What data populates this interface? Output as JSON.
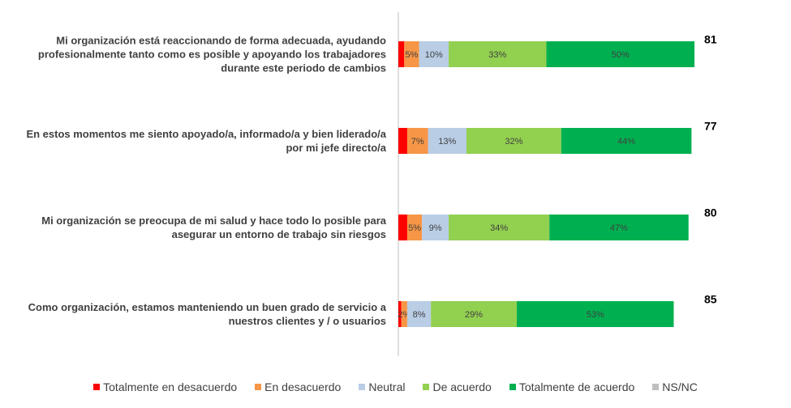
{
  "chart_data": {
    "type": "stacked-bar-horizontal",
    "categories": [
      "Mi organización está reaccionando de forma adecuada, ayudando profesionalmente tanto como es posible y apoyando los trabajadores durante este periodo de cambios",
      "En estos momentos me siento apoyado/a, informado/a y bien liderado/a por mi jefe directo/a",
      "Mi organización se preocupa de mi salud y hace todo lo posible para asegurar un entorno de trabajo sin riesgos",
      "Como organización, estamos manteniendo un buen grado de servicio a nuestros clientes y / o usuarios"
    ],
    "xlim": [
      0,
      100
    ],
    "series": [
      {
        "name": "Totalmente en desacuerdo",
        "color": "#ff0000",
        "values": [
          2,
          3,
          3,
          1
        ]
      },
      {
        "name": "En desacuerdo",
        "color": "#f79646",
        "values": [
          5,
          7,
          5,
          2
        ],
        "value_labels": [
          "5%",
          "7%",
          "5%",
          "2%"
        ]
      },
      {
        "name": "Neutral",
        "color": "#b9cde5",
        "values": [
          10,
          13,
          9,
          8
        ],
        "value_labels": [
          "10%",
          "13%",
          "9%",
          "8%"
        ]
      },
      {
        "name": "De acuerdo",
        "color": "#92d050",
        "values": [
          33,
          32,
          34,
          29
        ],
        "value_labels": [
          "33%",
          "32%",
          "34%",
          "29%"
        ]
      },
      {
        "name": "Totalmente de acuerdo",
        "color": "#00b050",
        "values": [
          50,
          44,
          47,
          53
        ],
        "value_labels": [
          "50%",
          "44%",
          "47%",
          "53%"
        ]
      },
      {
        "name": "NS/NC",
        "color": "#bfbfbf",
        "values": [
          null,
          null,
          null,
          null
        ]
      }
    ],
    "totals": [
      81,
      77,
      80,
      85
    ]
  }
}
